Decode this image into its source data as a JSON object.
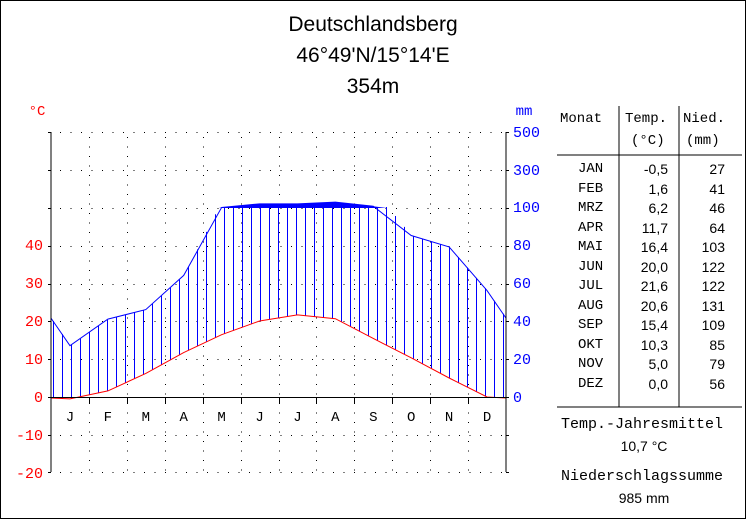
{
  "header": {
    "station": "Deutschlandsberg",
    "coords": "46°49'N/15°14'E",
    "elevation": "354m"
  },
  "chart_data": {
    "type": "climate-diagram",
    "months_axis": [
      "J",
      "F",
      "M",
      "A",
      "M",
      "J",
      "J",
      "A",
      "S",
      "O",
      "N",
      "D"
    ],
    "temperature": {
      "unit_label": "°C",
      "color": "#ff0000",
      "values": [
        -0.5,
        1.6,
        6.2,
        11.7,
        16.4,
        20.0,
        21.6,
        20.6,
        15.4,
        10.3,
        5.0,
        0.0
      ],
      "ticks": [
        "-20",
        "-10",
        "0",
        "10",
        "20",
        "30",
        "40"
      ]
    },
    "precipitation": {
      "unit_label": "mm",
      "color": "#0000ff",
      "values": [
        27,
        41,
        46,
        64,
        103,
        122,
        122,
        131,
        109,
        85,
        79,
        56
      ],
      "ticks": [
        "0",
        "20",
        "40",
        "60",
        "80",
        "100",
        "300",
        "500"
      ]
    },
    "grid": "dotted"
  },
  "table": {
    "headers": {
      "month": "Monat",
      "temp": "Temp.",
      "temp_unit": "(°C)",
      "precip": "Nied.",
      "precip_unit": "(mm)"
    },
    "rows": [
      {
        "month": "JAN",
        "temp": "-0,5",
        "precip": "27"
      },
      {
        "month": "FEB",
        "temp": "1,6",
        "precip": "41"
      },
      {
        "month": "MRZ",
        "temp": "6,2",
        "precip": "46"
      },
      {
        "month": "APR",
        "temp": "11,7",
        "precip": "64"
      },
      {
        "month": "MAI",
        "temp": "16,4",
        "precip": "103"
      },
      {
        "month": "JUN",
        "temp": "20,0",
        "precip": "122"
      },
      {
        "month": "JUL",
        "temp": "21,6",
        "precip": "122"
      },
      {
        "month": "AUG",
        "temp": "20,6",
        "precip": "131"
      },
      {
        "month": "SEP",
        "temp": "15,4",
        "precip": "109"
      },
      {
        "month": "OKT",
        "temp": "10,3",
        "precip": "85"
      },
      {
        "month": "NOV",
        "temp": "5,0",
        "precip": "79"
      },
      {
        "month": "DEZ",
        "temp": "0,0",
        "precip": "56"
      }
    ],
    "mean_temp_label": "Temp.-Jahresmittel",
    "mean_temp": "10,7 °C",
    "precip_sum_label": "Niederschlagssumme",
    "precip_sum": "985 mm"
  }
}
